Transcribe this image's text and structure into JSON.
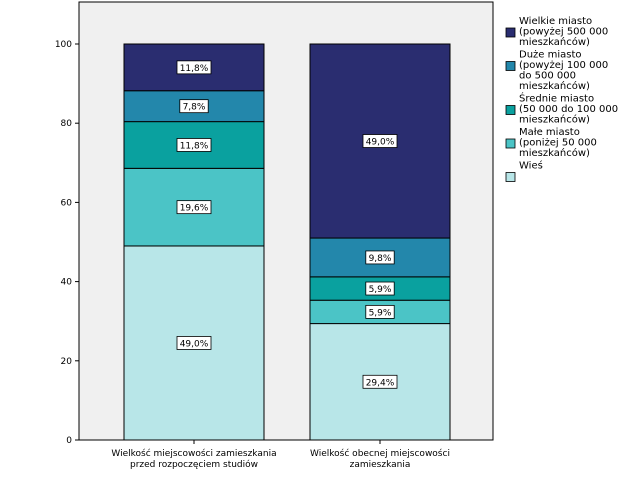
{
  "chart_data": {
    "type": "bar",
    "stacked": true,
    "categories": [
      [
        "Wielkość miejscowości zamieszkania",
        "przed rozpoczęciem studiów"
      ],
      [
        "Wielkość obecnej miejscowości",
        "zamieszkania"
      ]
    ],
    "ylim": [
      0,
      100
    ],
    "yticks": [
      0,
      20,
      40,
      60,
      80,
      100
    ],
    "grid": false,
    "legend_position": "right",
    "series": [
      {
        "name": "Wieś",
        "legend_lines": [
          "Wieś"
        ],
        "color": "#b8e6e8",
        "values": [
          49.0,
          29.4
        ],
        "labels": [
          "49,0%",
          "29,4%"
        ]
      },
      {
        "name": "Małe miasto (poniżej 50 000 mieszkańców)",
        "legend_lines": [
          "Małe miasto",
          "(poniżej 50 000",
          "mieszkańców)"
        ],
        "color": "#4bc4c6",
        "values": [
          19.6,
          5.9
        ],
        "labels": [
          "19,6%",
          "5,9%"
        ]
      },
      {
        "name": "Średnie miasto (50 000 do 100 000 mieszkańców)",
        "legend_lines": [
          "Średnie miasto",
          "(50 000 do 100 000",
          "mieszkańców)"
        ],
        "color": "#0aa19f",
        "values": [
          11.8,
          5.9
        ],
        "labels": [
          "11,8%",
          "5,9%"
        ]
      },
      {
        "name": "Duże miasto (powyżej 100 000 do 500 000 mieszkańców)",
        "legend_lines": [
          "Duże miasto",
          "(powyżej 100 000",
          "do 500 000",
          "mieszkańców)"
        ],
        "color": "#2387ab",
        "values": [
          7.8,
          9.8
        ],
        "labels": [
          "7,8%",
          "9,8%"
        ]
      },
      {
        "name": "Wielkie miasto (powyżej 500 000 mieszkańców)",
        "legend_lines": [
          "Wielkie miasto",
          "(powyżej 500 000",
          "mieszkańców)"
        ],
        "color": "#2a2d70",
        "values": [
          11.8,
          49.0
        ],
        "labels": [
          "11,8%",
          "49,0%"
        ]
      }
    ],
    "colors": {
      "plot_background": "#f0f0f0",
      "bar_outline": "#000000"
    }
  }
}
